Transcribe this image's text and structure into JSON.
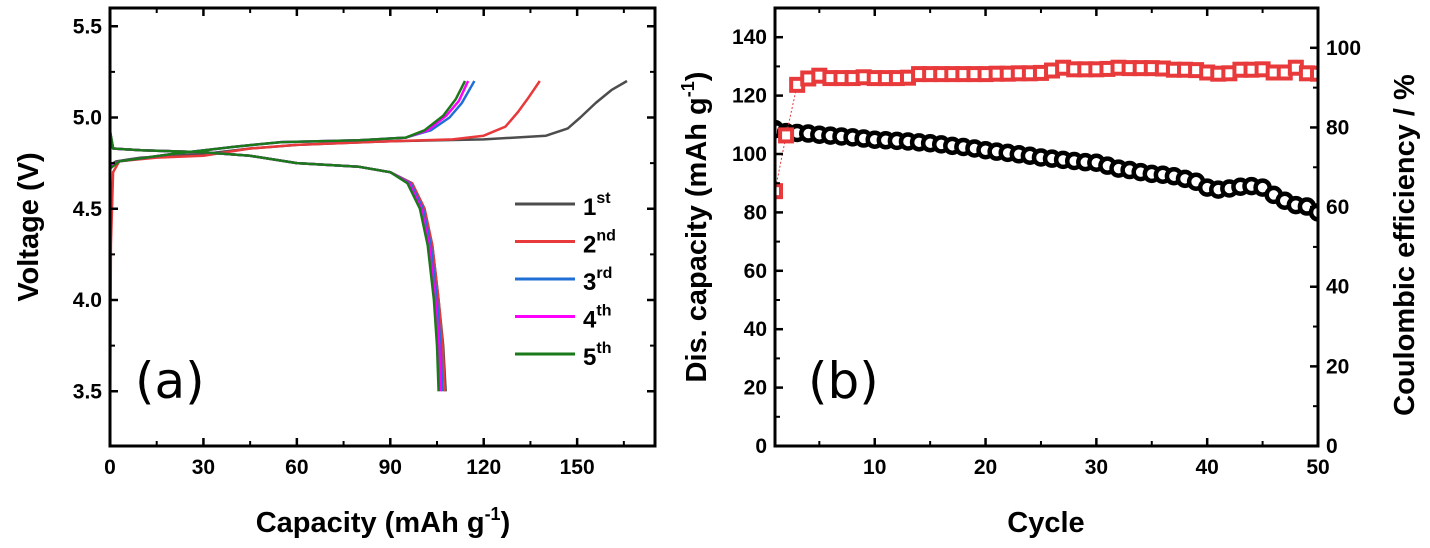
{
  "chart_data": [
    {
      "type": "line",
      "panel_label": "(a)",
      "xlabel": "Capacity (mAh g",
      "xlabel_sup": "-1",
      "xlabel_end": ")",
      "ylabel": "Voltage (V)",
      "xlim": [
        0,
        175
      ],
      "ylim": [
        3.2,
        5.6
      ],
      "xticks": [
        0,
        30,
        60,
        90,
        120,
        150
      ],
      "yticks": [
        3.5,
        4.0,
        4.5,
        5.0,
        5.5
      ],
      "ytick_labels": [
        "3.5",
        "4.0",
        "4.5",
        "5.0",
        "5.5"
      ],
      "grid": false,
      "legend_position": "right",
      "series": [
        {
          "name": "1",
          "sup": "st",
          "color": "#4d4d4d",
          "charge": [
            [
              0,
              4.74
            ],
            [
              2,
              4.76
            ],
            [
              10,
              4.78
            ],
            [
              30,
              4.8
            ],
            [
              45,
              4.83
            ],
            [
              60,
              4.85
            ],
            [
              90,
              4.87
            ],
            [
              120,
              4.88
            ],
            [
              140,
              4.9
            ],
            [
              147,
              4.94
            ],
            [
              151,
              5.0
            ],
            [
              156,
              5.08
            ],
            [
              161,
              5.15
            ],
            [
              166,
              5.2
            ]
          ],
          "discharge": [
            [
              0,
              4.92
            ],
            [
              1,
              4.83
            ],
            [
              10,
              4.82
            ],
            [
              30,
              4.81
            ],
            [
              45,
              4.79
            ],
            [
              60,
              4.75
            ],
            [
              80,
              4.73
            ],
            [
              90,
              4.7
            ],
            [
              97,
              4.64
            ],
            [
              101,
              4.5
            ],
            [
              103.5,
              4.3
            ],
            [
              105.5,
              4.0
            ],
            [
              107,
              3.75
            ],
            [
              107.8,
              3.5
            ]
          ]
        },
        {
          "name": "2",
          "sup": "nd",
          "color": "#e8393b",
          "charge": [
            [
              0,
              3.2
            ],
            [
              0.3,
              4.3
            ],
            [
              1,
              4.7
            ],
            [
              3,
              4.76
            ],
            [
              15,
              4.78
            ],
            [
              30,
              4.79
            ],
            [
              45,
              4.83
            ],
            [
              60,
              4.85
            ],
            [
              90,
              4.87
            ],
            [
              110,
              4.88
            ],
            [
              120,
              4.9
            ],
            [
              127,
              4.95
            ],
            [
              131,
              5.03
            ],
            [
              134,
              5.1
            ],
            [
              138,
              5.2
            ]
          ],
          "discharge": [
            [
              0,
              4.92
            ],
            [
              1,
              4.83
            ],
            [
              10,
              4.82
            ],
            [
              30,
              4.81
            ],
            [
              45,
              4.79
            ],
            [
              60,
              4.75
            ],
            [
              80,
              4.73
            ],
            [
              90,
              4.7
            ],
            [
              97,
              4.64
            ],
            [
              101,
              4.5
            ],
            [
              103.5,
              4.3
            ],
            [
              105.5,
              4.0
            ],
            [
              106.8,
              3.75
            ],
            [
              107.5,
              3.5
            ]
          ]
        },
        {
          "name": "3",
          "sup": "rd",
          "color": "#1f6fd6",
          "charge": [
            [
              0,
              4.73
            ],
            [
              3,
              4.76
            ],
            [
              20,
              4.8
            ],
            [
              40,
              4.84
            ],
            [
              55,
              4.865
            ],
            [
              80,
              4.875
            ],
            [
              95,
              4.89
            ],
            [
              103,
              4.93
            ],
            [
              109,
              5.0
            ],
            [
              113,
              5.08
            ],
            [
              117,
              5.2
            ]
          ],
          "discharge": [
            [
              0,
              4.92
            ],
            [
              1,
              4.83
            ],
            [
              10,
              4.82
            ],
            [
              30,
              4.81
            ],
            [
              45,
              4.79
            ],
            [
              60,
              4.75
            ],
            [
              80,
              4.73
            ],
            [
              90,
              4.7
            ],
            [
              96.5,
              4.64
            ],
            [
              100.5,
              4.5
            ],
            [
              103,
              4.3
            ],
            [
              105,
              4.0
            ],
            [
              106.2,
              3.75
            ],
            [
              106.7,
              3.5
            ]
          ]
        },
        {
          "name": "4",
          "sup": "th",
          "color": "#ff00ff",
          "charge": [
            [
              0,
              4.73
            ],
            [
              3,
              4.76
            ],
            [
              20,
              4.8
            ],
            [
              40,
              4.84
            ],
            [
              55,
              4.865
            ],
            [
              80,
              4.875
            ],
            [
              95,
              4.89
            ],
            [
              102,
              4.93
            ],
            [
              108,
              5.01
            ],
            [
              112,
              5.09
            ],
            [
              115,
              5.2
            ]
          ],
          "discharge": [
            [
              0,
              4.92
            ],
            [
              1,
              4.83
            ],
            [
              10,
              4.82
            ],
            [
              30,
              4.81
            ],
            [
              45,
              4.79
            ],
            [
              60,
              4.75
            ],
            [
              80,
              4.73
            ],
            [
              90,
              4.7
            ],
            [
              96,
              4.64
            ],
            [
              100,
              4.5
            ],
            [
              102.5,
              4.3
            ],
            [
              104.5,
              4.0
            ],
            [
              105.7,
              3.75
            ],
            [
              106.2,
              3.5
            ]
          ]
        },
        {
          "name": "5",
          "sup": "th",
          "color": "#1a7a1a",
          "charge": [
            [
              0,
              4.72
            ],
            [
              3,
              4.76
            ],
            [
              20,
              4.8
            ],
            [
              40,
              4.84
            ],
            [
              55,
              4.865
            ],
            [
              80,
              4.875
            ],
            [
              95,
              4.89
            ],
            [
              101,
              4.93
            ],
            [
              107,
              5.01
            ],
            [
              111,
              5.1
            ],
            [
              114,
              5.2
            ]
          ],
          "discharge": [
            [
              0,
              4.93
            ],
            [
              1,
              4.83
            ],
            [
              10,
              4.82
            ],
            [
              30,
              4.81
            ],
            [
              45,
              4.79
            ],
            [
              60,
              4.75
            ],
            [
              80,
              4.73
            ],
            [
              90,
              4.7
            ],
            [
              95.5,
              4.64
            ],
            [
              99.5,
              4.5
            ],
            [
              102,
              4.3
            ],
            [
              104,
              4.0
            ],
            [
              105,
              3.75
            ],
            [
              105.5,
              3.5
            ]
          ]
        }
      ]
    },
    {
      "type": "scatter",
      "panel_label": "(b)",
      "xlabel": "Cycle",
      "ylabel": "Dis. capacity (mAh g",
      "ylabel_sup": "-1",
      "ylabel_end": ")",
      "y2label": "Coulombic efficiency / %",
      "xlim": [
        1,
        50
      ],
      "ylim": [
        0,
        150
      ],
      "y2lim": [
        0,
        110
      ],
      "xticks": [
        10,
        20,
        30,
        40,
        50
      ],
      "yticks": [
        0,
        20,
        40,
        60,
        80,
        100,
        120,
        140
      ],
      "y2ticks": [
        0,
        20,
        40,
        60,
        80,
        100
      ],
      "grid": false,
      "x": [
        1,
        2,
        3,
        4,
        5,
        6,
        7,
        8,
        9,
        10,
        11,
        12,
        13,
        14,
        15,
        16,
        17,
        18,
        19,
        20,
        21,
        22,
        23,
        24,
        25,
        26,
        27,
        28,
        29,
        30,
        31,
        32,
        33,
        34,
        35,
        36,
        37,
        38,
        39,
        40,
        41,
        42,
        43,
        44,
        45,
        46,
        47,
        48,
        49,
        50
      ],
      "series": [
        {
          "axis": "left",
          "marker": "circle",
          "color": "#000000",
          "values": [
            108.5,
            107.5,
            107.2,
            107,
            106.6,
            106.3,
            106,
            105.7,
            105.3,
            104.9,
            104.7,
            104.5,
            104.3,
            104,
            103.7,
            103.3,
            102.8,
            102.4,
            101.9,
            101.3,
            100.8,
            100.4,
            99.9,
            99.4,
            98.8,
            98.4,
            98,
            97.6,
            97.2,
            97,
            96,
            95,
            94.5,
            93.8,
            93.2,
            92.9,
            92.4,
            91.5,
            90.5,
            88.5,
            87.8,
            88.2,
            88.8,
            89,
            88.5,
            86,
            84,
            82.5,
            82,
            80
          ]
        },
        {
          "axis": "right",
          "marker": "square",
          "color": "#e8393b",
          "line": "dotted",
          "values": [
            64,
            78,
            90.7,
            92.3,
            93,
            92.4,
            92.4,
            92.4,
            92.6,
            92.4,
            92.4,
            92.4,
            92.5,
            93.4,
            93.4,
            93.4,
            93.4,
            93.4,
            93.4,
            93.4,
            93.5,
            93.5,
            93.6,
            93.6,
            93.7,
            94.3,
            95,
            94.6,
            94.6,
            94.6,
            94.7,
            95,
            94.9,
            94.9,
            94.9,
            94.8,
            94.5,
            94.5,
            94.4,
            93.8,
            93.5,
            93.6,
            94.5,
            94.5,
            94.6,
            93.8,
            93.8,
            95,
            93.6,
            93.5
          ]
        }
      ]
    }
  ]
}
